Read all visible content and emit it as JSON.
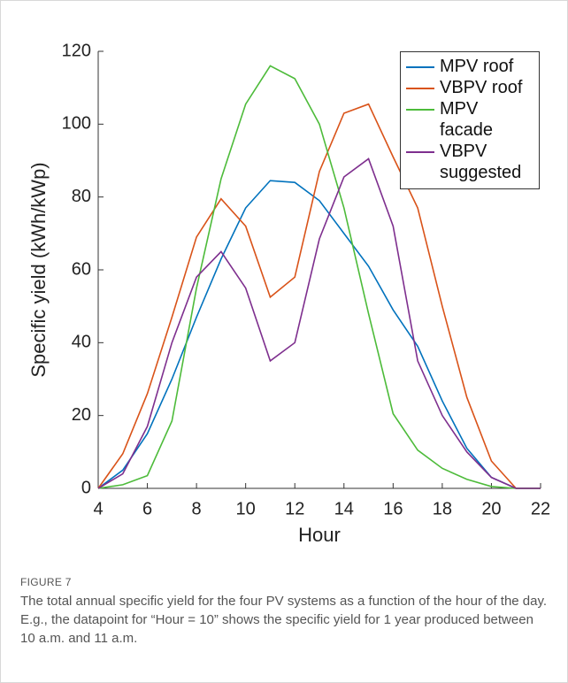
{
  "chart_data": {
    "type": "line",
    "xlabel": "Hour",
    "ylabel": "Specific yield (kWh/kWp)",
    "x": [
      4,
      5,
      6,
      7,
      8,
      9,
      10,
      11,
      12,
      13,
      14,
      15,
      16,
      17,
      18,
      19,
      20,
      21,
      22
    ],
    "series": [
      {
        "name": "MPV roof",
        "color": "#0072bd",
        "values": [
          0,
          5,
          15,
          30,
          47,
          63,
          77,
          84.5,
          84,
          79,
          70,
          61,
          49,
          39,
          24,
          11,
          3,
          0,
          0
        ]
      },
      {
        "name": "VBPV roof",
        "color": "#d95319",
        "values": [
          0,
          9.5,
          26,
          47,
          69,
          79.5,
          72,
          52.5,
          58,
          87,
          103,
          105.5,
          91,
          77,
          50,
          25,
          7.5,
          0,
          0
        ]
      },
      {
        "name": "MPV facade",
        "color": "#4dbb3a",
        "values": [
          0,
          1,
          3.5,
          18.5,
          55,
          85,
          105.5,
          116,
          112.5,
          100,
          77,
          48,
          20.5,
          10.5,
          5.5,
          2.5,
          0.5,
          0,
          0
        ]
      },
      {
        "name": "VBPV suggested",
        "color": "#7e2f8e",
        "values": [
          0,
          4,
          17,
          40,
          58,
          65,
          55,
          35,
          40,
          68.5,
          85.5,
          90.5,
          72,
          35,
          20,
          10,
          3,
          0,
          0
        ]
      }
    ],
    "xlim": [
      4,
      22
    ],
    "xticks": [
      4,
      6,
      8,
      10,
      12,
      14,
      16,
      18,
      20,
      22
    ],
    "ylim": [
      0,
      120
    ],
    "yticks": [
      0,
      20,
      40,
      60,
      80,
      100,
      120
    ],
    "legend": "upper right"
  },
  "caption": {
    "label": "FIGURE 7",
    "text": "The total annual specific yield for the four PV systems as a function of the hour of the day. E.g., the datapoint for “Hour = 10” shows the specific yield for 1 year produced between 10 a.m. and 11 a.m."
  }
}
